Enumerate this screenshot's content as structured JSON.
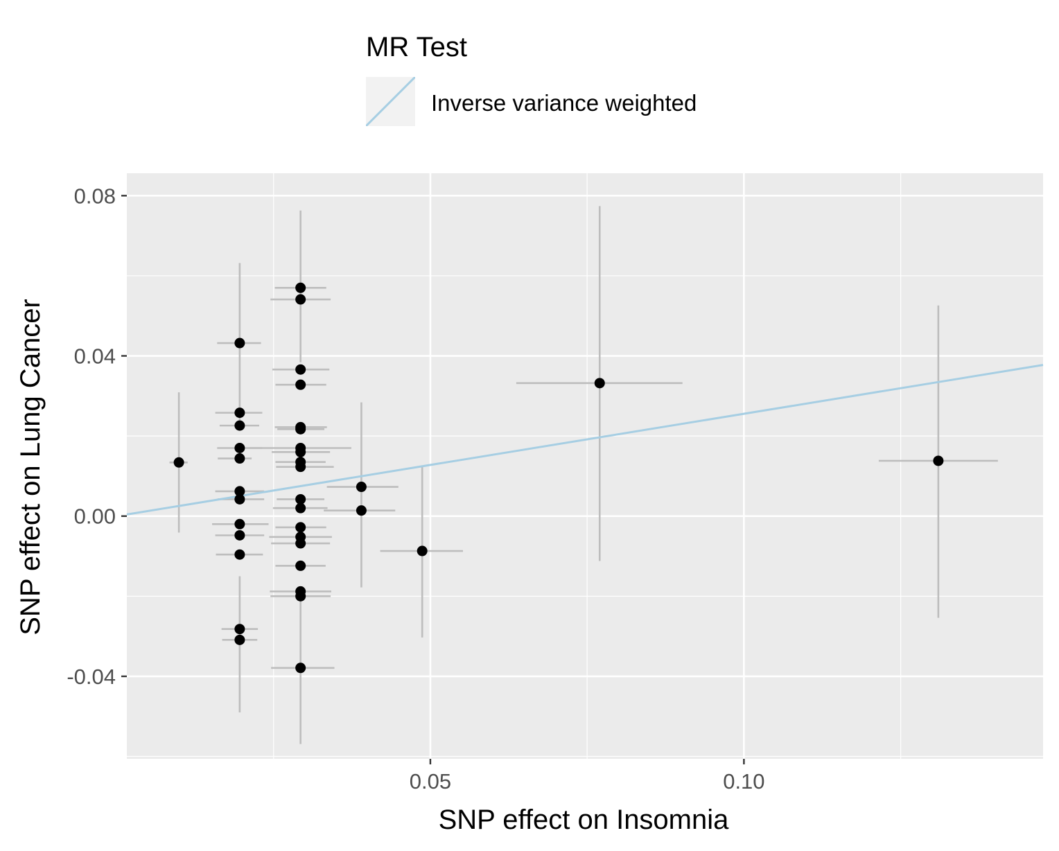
{
  "chart_data": {
    "type": "scatter",
    "title": "",
    "xlabel": "SNP effect on Insomnia",
    "ylabel": "SNP effect on Lung Cancer",
    "xlim": [
      0.0016,
      0.1477
    ],
    "ylim": [
      -0.0606,
      0.0856
    ],
    "x_ticks": [
      0.05,
      0.1
    ],
    "x_tick_labels": [
      "0.05",
      "0.10"
    ],
    "y_ticks": [
      -0.04,
      0.0,
      0.04,
      0.08
    ],
    "y_tick_labels": [
      "-0.04",
      "0.00",
      "0.04",
      "0.08"
    ],
    "grid": true,
    "legend": {
      "title": "MR Test",
      "position": "top",
      "entries": [
        {
          "label": "Inverse variance weighted",
          "color": "#a6cee3"
        }
      ]
    },
    "colors": {
      "panel": "#ebebeb",
      "grid": "#ffffff",
      "point": "#000000",
      "errorbar": "#bdbdbd",
      "line": "#a6cee3",
      "axis_text": "#4d4d4d"
    },
    "regression_line": {
      "name": "Inverse variance weighted",
      "slope": 0.2555,
      "intercept": 0.0
    },
    "points": [
      {
        "x": 0.0099,
        "y": 0.0134,
        "x_lo": 0.0084,
        "x_hi": 0.0113,
        "y_lo": -0.0041,
        "y_hi": 0.0309
      },
      {
        "x": 0.0196,
        "y": 0.0432,
        "x_lo": 0.016,
        "x_hi": 0.023,
        "y_lo": 0.0233,
        "y_hi": 0.0632
      },
      {
        "x": 0.0196,
        "y": 0.0258,
        "x_lo": 0.0157,
        "x_hi": 0.0232
      },
      {
        "x": 0.0196,
        "y": 0.0226,
        "x_lo": 0.0164,
        "x_hi": 0.0227
      },
      {
        "x": 0.0196,
        "y": 0.017,
        "x_lo": 0.016,
        "x_hi": 0.0232
      },
      {
        "x": 0.0196,
        "y": 0.0144,
        "x_lo": 0.0161,
        "x_hi": 0.0215
      },
      {
        "x": 0.0196,
        "y": 0.0062,
        "x_lo": 0.0157,
        "x_hi": 0.0235
      },
      {
        "x": 0.0196,
        "y": 0.0042,
        "x_lo": 0.0161,
        "x_hi": 0.0235
      },
      {
        "x": 0.0196,
        "y": -0.002,
        "x_lo": 0.0152,
        "x_hi": 0.0242
      },
      {
        "x": 0.0196,
        "y": -0.0048,
        "x_lo": 0.0157,
        "x_hi": 0.0235
      },
      {
        "x": 0.0196,
        "y": -0.0096,
        "x_lo": 0.0158,
        "x_hi": 0.0233
      },
      {
        "x": 0.0196,
        "y": -0.0282,
        "x_lo": 0.0167,
        "x_hi": 0.0225
      },
      {
        "x": 0.0196,
        "y": -0.0309,
        "x_lo": 0.0168,
        "x_hi": 0.0224,
        "y_lo": -0.049,
        "y_hi": -0.015
      },
      {
        "x": 0.0293,
        "y": 0.057,
        "x_lo": 0.0252,
        "x_hi": 0.0334,
        "y_lo": 0.0384,
        "y_hi": 0.0763
      },
      {
        "x": 0.0293,
        "y": 0.0541,
        "x_lo": 0.0245,
        "x_hi": 0.0341
      },
      {
        "x": 0.0293,
        "y": 0.0366,
        "x_lo": 0.0248,
        "x_hi": 0.0339
      },
      {
        "x": 0.0293,
        "y": 0.0328,
        "x_lo": 0.0253,
        "x_hi": 0.0334
      },
      {
        "x": 0.0293,
        "y": 0.0222,
        "x_lo": 0.0252,
        "x_hi": 0.0335
      },
      {
        "x": 0.0293,
        "y": 0.0217,
        "x_lo": 0.0256,
        "x_hi": 0.0331
      },
      {
        "x": 0.0293,
        "y": 0.017,
        "x_lo": 0.0212,
        "x_hi": 0.0374
      },
      {
        "x": 0.0293,
        "y": 0.016,
        "x_lo": 0.0247,
        "x_hi": 0.034
      },
      {
        "x": 0.0293,
        "y": 0.0135,
        "x_lo": 0.0253,
        "x_hi": 0.0333
      },
      {
        "x": 0.0293,
        "y": 0.0123,
        "x_lo": 0.0254,
        "x_hi": 0.0346
      },
      {
        "x": 0.0293,
        "y": 0.0042,
        "x_lo": 0.0255,
        "x_hi": 0.0331
      },
      {
        "x": 0.0293,
        "y": 0.002,
        "x_lo": 0.0249,
        "x_hi": 0.0336
      },
      {
        "x": 0.0293,
        "y": -0.0028,
        "x_lo": 0.0253,
        "x_hi": 0.0334
      },
      {
        "x": 0.0293,
        "y": -0.0052,
        "x_lo": 0.0243,
        "x_hi": 0.0343
      },
      {
        "x": 0.0293,
        "y": -0.0068,
        "x_lo": 0.0246,
        "x_hi": 0.034
      },
      {
        "x": 0.0293,
        "y": -0.0124,
        "x_lo": 0.0253,
        "x_hi": 0.0333
      },
      {
        "x": 0.0293,
        "y": -0.0188,
        "x_lo": 0.0244,
        "x_hi": 0.0342
      },
      {
        "x": 0.0293,
        "y": -0.02,
        "x_lo": 0.0245,
        "x_hi": 0.0341
      },
      {
        "x": 0.0293,
        "y": -0.0379,
        "x_lo": 0.0246,
        "x_hi": 0.0347,
        "y_lo": -0.0569,
        "y_hi": -0.02
      },
      {
        "x": 0.039,
        "y": 0.0073,
        "x_lo": 0.0335,
        "x_hi": 0.0449,
        "y_lo": 0.0284,
        "y_hi": -0.0178
      },
      {
        "x": 0.039,
        "y": 0.0014,
        "x_lo": 0.033,
        "x_hi": 0.0444
      },
      {
        "x": 0.0487,
        "y": -0.0087,
        "x_lo": 0.042,
        "x_hi": 0.0552,
        "y_lo": -0.0303,
        "y_hi": 0.0125
      },
      {
        "x": 0.077,
        "y": 0.0332,
        "x_lo": 0.0637,
        "x_hi": 0.0902,
        "y_lo": -0.0112,
        "y_hi": 0.0774
      },
      {
        "x": 0.131,
        "y": 0.0138,
        "x_lo": 0.1215,
        "x_hi": 0.1405,
        "y_lo": -0.0254,
        "y_hi": 0.0526
      }
    ]
  }
}
